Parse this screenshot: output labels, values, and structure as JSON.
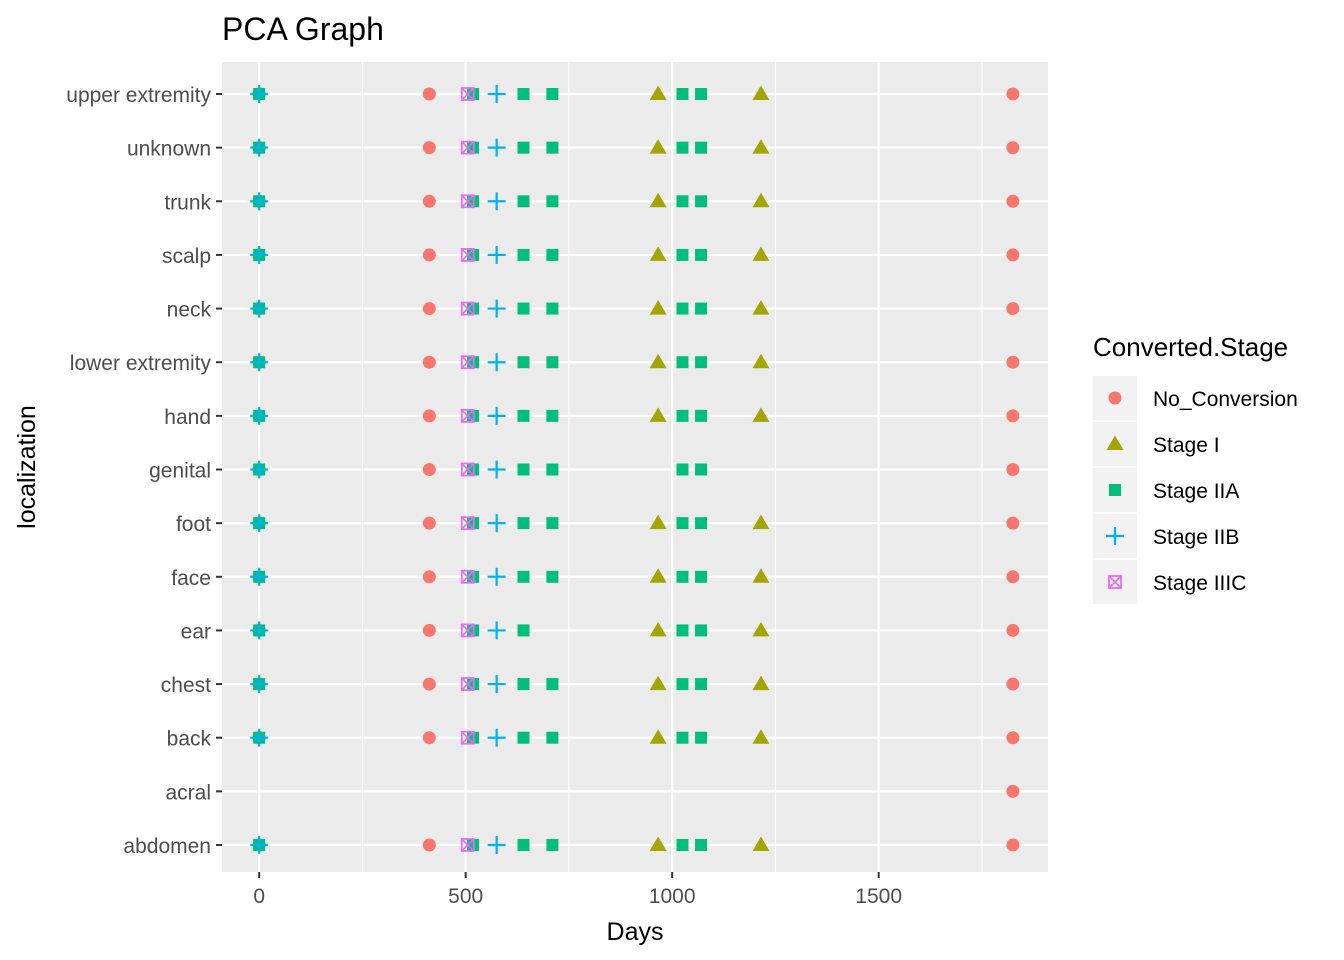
{
  "chart_data": {
    "type": "scatter",
    "title": "PCA Graph",
    "xlabel": "Days",
    "ylabel": "localization",
    "xlim": [
      -90,
      1910
    ],
    "x_ticks": [
      0,
      500,
      1000,
      1500
    ],
    "x_tick_labels": [
      "0",
      "500",
      "1000",
      "1500"
    ],
    "categories": [
      "abdomen",
      "acral",
      "back",
      "chest",
      "ear",
      "face",
      "foot",
      "genital",
      "hand",
      "lower extremity",
      "neck",
      "scalp",
      "trunk",
      "unknown",
      "upper extremity"
    ],
    "grid": true,
    "legend": {
      "title": "Converted.Stage",
      "placement": "right"
    },
    "series": [
      {
        "name": "No_Conversion",
        "color": "#F8766D",
        "shape": "circle",
        "points": [
          {
            "x": 0,
            "y": "abdomen"
          },
          {
            "x": 412,
            "y": "abdomen"
          },
          {
            "x": 1825,
            "y": "abdomen"
          },
          {
            "x": 1825,
            "y": "acral"
          },
          {
            "x": 0,
            "y": "back"
          },
          {
            "x": 412,
            "y": "back"
          },
          {
            "x": 1825,
            "y": "back"
          },
          {
            "x": 0,
            "y": "chest"
          },
          {
            "x": 412,
            "y": "chest"
          },
          {
            "x": 1825,
            "y": "chest"
          },
          {
            "x": 0,
            "y": "ear"
          },
          {
            "x": 412,
            "y": "ear"
          },
          {
            "x": 1825,
            "y": "ear"
          },
          {
            "x": 0,
            "y": "face"
          },
          {
            "x": 412,
            "y": "face"
          },
          {
            "x": 1825,
            "y": "face"
          },
          {
            "x": 0,
            "y": "foot"
          },
          {
            "x": 412,
            "y": "foot"
          },
          {
            "x": 1825,
            "y": "foot"
          },
          {
            "x": 0,
            "y": "genital"
          },
          {
            "x": 412,
            "y": "genital"
          },
          {
            "x": 1825,
            "y": "genital"
          },
          {
            "x": 0,
            "y": "hand"
          },
          {
            "x": 412,
            "y": "hand"
          },
          {
            "x": 1825,
            "y": "hand"
          },
          {
            "x": 0,
            "y": "lower extremity"
          },
          {
            "x": 412,
            "y": "lower extremity"
          },
          {
            "x": 1825,
            "y": "lower extremity"
          },
          {
            "x": 0,
            "y": "neck"
          },
          {
            "x": 412,
            "y": "neck"
          },
          {
            "x": 1825,
            "y": "neck"
          },
          {
            "x": 0,
            "y": "scalp"
          },
          {
            "x": 412,
            "y": "scalp"
          },
          {
            "x": 1825,
            "y": "scalp"
          },
          {
            "x": 0,
            "y": "trunk"
          },
          {
            "x": 412,
            "y": "trunk"
          },
          {
            "x": 1825,
            "y": "trunk"
          },
          {
            "x": 0,
            "y": "unknown"
          },
          {
            "x": 412,
            "y": "unknown"
          },
          {
            "x": 1825,
            "y": "unknown"
          },
          {
            "x": 0,
            "y": "upper extremity"
          },
          {
            "x": 412,
            "y": "upper extremity"
          },
          {
            "x": 1825,
            "y": "upper extremity"
          }
        ]
      },
      {
        "name": "Stage I",
        "color": "#A3A500",
        "shape": "triangle",
        "points": [
          {
            "x": 966,
            "y": "abdomen"
          },
          {
            "x": 1215,
            "y": "abdomen"
          },
          {
            "x": 966,
            "y": "back"
          },
          {
            "x": 1215,
            "y": "back"
          },
          {
            "x": 966,
            "y": "chest"
          },
          {
            "x": 1215,
            "y": "chest"
          },
          {
            "x": 966,
            "y": "ear"
          },
          {
            "x": 1215,
            "y": "ear"
          },
          {
            "x": 966,
            "y": "face"
          },
          {
            "x": 1215,
            "y": "face"
          },
          {
            "x": 966,
            "y": "foot"
          },
          {
            "x": 1215,
            "y": "foot"
          },
          {
            "x": 966,
            "y": "hand"
          },
          {
            "x": 1215,
            "y": "hand"
          },
          {
            "x": 966,
            "y": "lower extremity"
          },
          {
            "x": 1215,
            "y": "lower extremity"
          },
          {
            "x": 966,
            "y": "neck"
          },
          {
            "x": 1215,
            "y": "neck"
          },
          {
            "x": 966,
            "y": "scalp"
          },
          {
            "x": 1215,
            "y": "scalp"
          },
          {
            "x": 966,
            "y": "trunk"
          },
          {
            "x": 1215,
            "y": "trunk"
          },
          {
            "x": 966,
            "y": "unknown"
          },
          {
            "x": 1215,
            "y": "unknown"
          },
          {
            "x": 966,
            "y": "upper extremity"
          },
          {
            "x": 1215,
            "y": "upper extremity"
          }
        ]
      },
      {
        "name": "Stage IIA",
        "color": "#00BF7D",
        "shape": "square",
        "points": [
          {
            "x": 0,
            "y": "abdomen"
          },
          {
            "x": 518,
            "y": "abdomen"
          },
          {
            "x": 640,
            "y": "abdomen"
          },
          {
            "x": 710,
            "y": "abdomen"
          },
          {
            "x": 1025,
            "y": "abdomen"
          },
          {
            "x": 1070,
            "y": "abdomen"
          },
          {
            "x": 0,
            "y": "back"
          },
          {
            "x": 518,
            "y": "back"
          },
          {
            "x": 640,
            "y": "back"
          },
          {
            "x": 710,
            "y": "back"
          },
          {
            "x": 1025,
            "y": "back"
          },
          {
            "x": 1070,
            "y": "back"
          },
          {
            "x": 0,
            "y": "chest"
          },
          {
            "x": 518,
            "y": "chest"
          },
          {
            "x": 640,
            "y": "chest"
          },
          {
            "x": 710,
            "y": "chest"
          },
          {
            "x": 1025,
            "y": "chest"
          },
          {
            "x": 1070,
            "y": "chest"
          },
          {
            "x": 0,
            "y": "ear"
          },
          {
            "x": 518,
            "y": "ear"
          },
          {
            "x": 640,
            "y": "ear"
          },
          {
            "x": 1025,
            "y": "ear"
          },
          {
            "x": 1070,
            "y": "ear"
          },
          {
            "x": 0,
            "y": "face"
          },
          {
            "x": 518,
            "y": "face"
          },
          {
            "x": 640,
            "y": "face"
          },
          {
            "x": 710,
            "y": "face"
          },
          {
            "x": 1025,
            "y": "face"
          },
          {
            "x": 1070,
            "y": "face"
          },
          {
            "x": 0,
            "y": "foot"
          },
          {
            "x": 518,
            "y": "foot"
          },
          {
            "x": 640,
            "y": "foot"
          },
          {
            "x": 710,
            "y": "foot"
          },
          {
            "x": 1025,
            "y": "foot"
          },
          {
            "x": 1070,
            "y": "foot"
          },
          {
            "x": 0,
            "y": "genital"
          },
          {
            "x": 518,
            "y": "genital"
          },
          {
            "x": 640,
            "y": "genital"
          },
          {
            "x": 710,
            "y": "genital"
          },
          {
            "x": 1025,
            "y": "genital"
          },
          {
            "x": 1070,
            "y": "genital"
          },
          {
            "x": 0,
            "y": "hand"
          },
          {
            "x": 518,
            "y": "hand"
          },
          {
            "x": 640,
            "y": "hand"
          },
          {
            "x": 710,
            "y": "hand"
          },
          {
            "x": 1025,
            "y": "hand"
          },
          {
            "x": 1070,
            "y": "hand"
          },
          {
            "x": 0,
            "y": "lower extremity"
          },
          {
            "x": 518,
            "y": "lower extremity"
          },
          {
            "x": 640,
            "y": "lower extremity"
          },
          {
            "x": 710,
            "y": "lower extremity"
          },
          {
            "x": 1025,
            "y": "lower extremity"
          },
          {
            "x": 1070,
            "y": "lower extremity"
          },
          {
            "x": 0,
            "y": "neck"
          },
          {
            "x": 518,
            "y": "neck"
          },
          {
            "x": 640,
            "y": "neck"
          },
          {
            "x": 710,
            "y": "neck"
          },
          {
            "x": 1025,
            "y": "neck"
          },
          {
            "x": 1070,
            "y": "neck"
          },
          {
            "x": 0,
            "y": "scalp"
          },
          {
            "x": 518,
            "y": "scalp"
          },
          {
            "x": 640,
            "y": "scalp"
          },
          {
            "x": 710,
            "y": "scalp"
          },
          {
            "x": 1025,
            "y": "scalp"
          },
          {
            "x": 1070,
            "y": "scalp"
          },
          {
            "x": 0,
            "y": "trunk"
          },
          {
            "x": 518,
            "y": "trunk"
          },
          {
            "x": 640,
            "y": "trunk"
          },
          {
            "x": 710,
            "y": "trunk"
          },
          {
            "x": 1025,
            "y": "trunk"
          },
          {
            "x": 1070,
            "y": "trunk"
          },
          {
            "x": 0,
            "y": "unknown"
          },
          {
            "x": 518,
            "y": "unknown"
          },
          {
            "x": 640,
            "y": "unknown"
          },
          {
            "x": 710,
            "y": "unknown"
          },
          {
            "x": 1025,
            "y": "unknown"
          },
          {
            "x": 1070,
            "y": "unknown"
          },
          {
            "x": 0,
            "y": "upper extremity"
          },
          {
            "x": 518,
            "y": "upper extremity"
          },
          {
            "x": 640,
            "y": "upper extremity"
          },
          {
            "x": 710,
            "y": "upper extremity"
          },
          {
            "x": 1025,
            "y": "upper extremity"
          },
          {
            "x": 1070,
            "y": "upper extremity"
          }
        ]
      },
      {
        "name": "Stage IIB",
        "color": "#00B0F6",
        "shape": "plus",
        "points": [
          {
            "x": 0,
            "y": "abdomen"
          },
          {
            "x": 575,
            "y": "abdomen"
          },
          {
            "x": 0,
            "y": "back"
          },
          {
            "x": 575,
            "y": "back"
          },
          {
            "x": 0,
            "y": "chest"
          },
          {
            "x": 575,
            "y": "chest"
          },
          {
            "x": 0,
            "y": "ear"
          },
          {
            "x": 575,
            "y": "ear"
          },
          {
            "x": 0,
            "y": "face"
          },
          {
            "x": 575,
            "y": "face"
          },
          {
            "x": 0,
            "y": "foot"
          },
          {
            "x": 575,
            "y": "foot"
          },
          {
            "x": 0,
            "y": "genital"
          },
          {
            "x": 575,
            "y": "genital"
          },
          {
            "x": 0,
            "y": "hand"
          },
          {
            "x": 575,
            "y": "hand"
          },
          {
            "x": 0,
            "y": "lower extremity"
          },
          {
            "x": 575,
            "y": "lower extremity"
          },
          {
            "x": 0,
            "y": "neck"
          },
          {
            "x": 575,
            "y": "neck"
          },
          {
            "x": 0,
            "y": "scalp"
          },
          {
            "x": 575,
            "y": "scalp"
          },
          {
            "x": 0,
            "y": "trunk"
          },
          {
            "x": 575,
            "y": "trunk"
          },
          {
            "x": 0,
            "y": "unknown"
          },
          {
            "x": 575,
            "y": "unknown"
          },
          {
            "x": 0,
            "y": "upper extremity"
          },
          {
            "x": 575,
            "y": "upper extremity"
          }
        ]
      },
      {
        "name": "Stage IIIC",
        "color": "#E76BF3",
        "shape": "square-cross",
        "points": [
          {
            "x": 505,
            "y": "abdomen"
          },
          {
            "x": 505,
            "y": "back"
          },
          {
            "x": 505,
            "y": "chest"
          },
          {
            "x": 505,
            "y": "ear"
          },
          {
            "x": 505,
            "y": "face"
          },
          {
            "x": 505,
            "y": "foot"
          },
          {
            "x": 505,
            "y": "genital"
          },
          {
            "x": 505,
            "y": "hand"
          },
          {
            "x": 505,
            "y": "lower extremity"
          },
          {
            "x": 505,
            "y": "neck"
          },
          {
            "x": 505,
            "y": "scalp"
          },
          {
            "x": 505,
            "y": "trunk"
          },
          {
            "x": 505,
            "y": "unknown"
          },
          {
            "x": 505,
            "y": "upper extremity"
          }
        ]
      }
    ]
  }
}
